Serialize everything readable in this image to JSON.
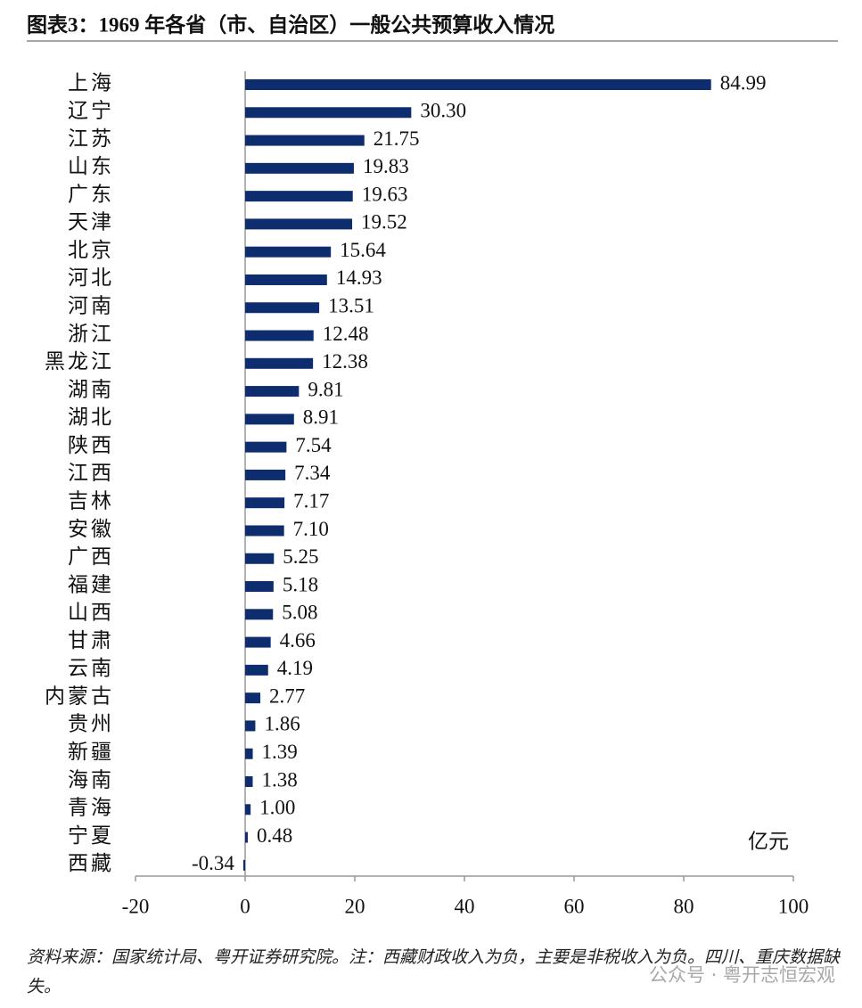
{
  "chart_data": {
    "type": "bar",
    "orientation": "horizontal",
    "title": "图表3：1969 年各省（市、自治区）一般公共预算收入情况",
    "unit_label": "亿元",
    "categories": [
      "上海",
      "辽宁",
      "江苏",
      "山东",
      "广东",
      "天津",
      "北京",
      "河北",
      "河南",
      "浙江",
      "黑龙江",
      "湖南",
      "湖北",
      "陕西",
      "江西",
      "吉林",
      "安徽",
      "广西",
      "福建",
      "山西",
      "甘肃",
      "云南",
      "内蒙古",
      "贵州",
      "新疆",
      "海南",
      "青海",
      "宁夏",
      "西藏"
    ],
    "values": [
      84.99,
      30.3,
      21.75,
      19.83,
      19.63,
      19.52,
      15.64,
      14.93,
      13.51,
      12.48,
      12.38,
      9.81,
      8.91,
      7.54,
      7.34,
      7.17,
      7.1,
      5.25,
      5.18,
      5.08,
      4.66,
      4.19,
      2.77,
      1.86,
      1.39,
      1.38,
      1.0,
      0.48,
      -0.34
    ],
    "value_labels": [
      "84.99",
      "30.30",
      "21.75",
      "19.83",
      "19.63",
      "19.52",
      "15.64",
      "14.93",
      "13.51",
      "12.48",
      "12.38",
      "9.81",
      "8.91",
      "7.54",
      "7.34",
      "7.17",
      "7.10",
      "5.25",
      "5.18",
      "5.08",
      "4.66",
      "4.19",
      "2.77",
      "1.86",
      "1.39",
      "1.38",
      "1.00",
      "0.48",
      "-0.34"
    ],
    "color": "#0e2d6e",
    "xlim": [
      -20,
      100
    ],
    "xticks": [
      -20,
      0,
      20,
      40,
      60,
      80,
      100
    ],
    "grid": false,
    "source_note": "资料来源：国家统计局、粤开证券研究院。注：西藏财政收入为负，主要是非税收入为负。四川、重庆数据缺失。",
    "watermark": "公众号 · 粤开志恒宏观"
  }
}
